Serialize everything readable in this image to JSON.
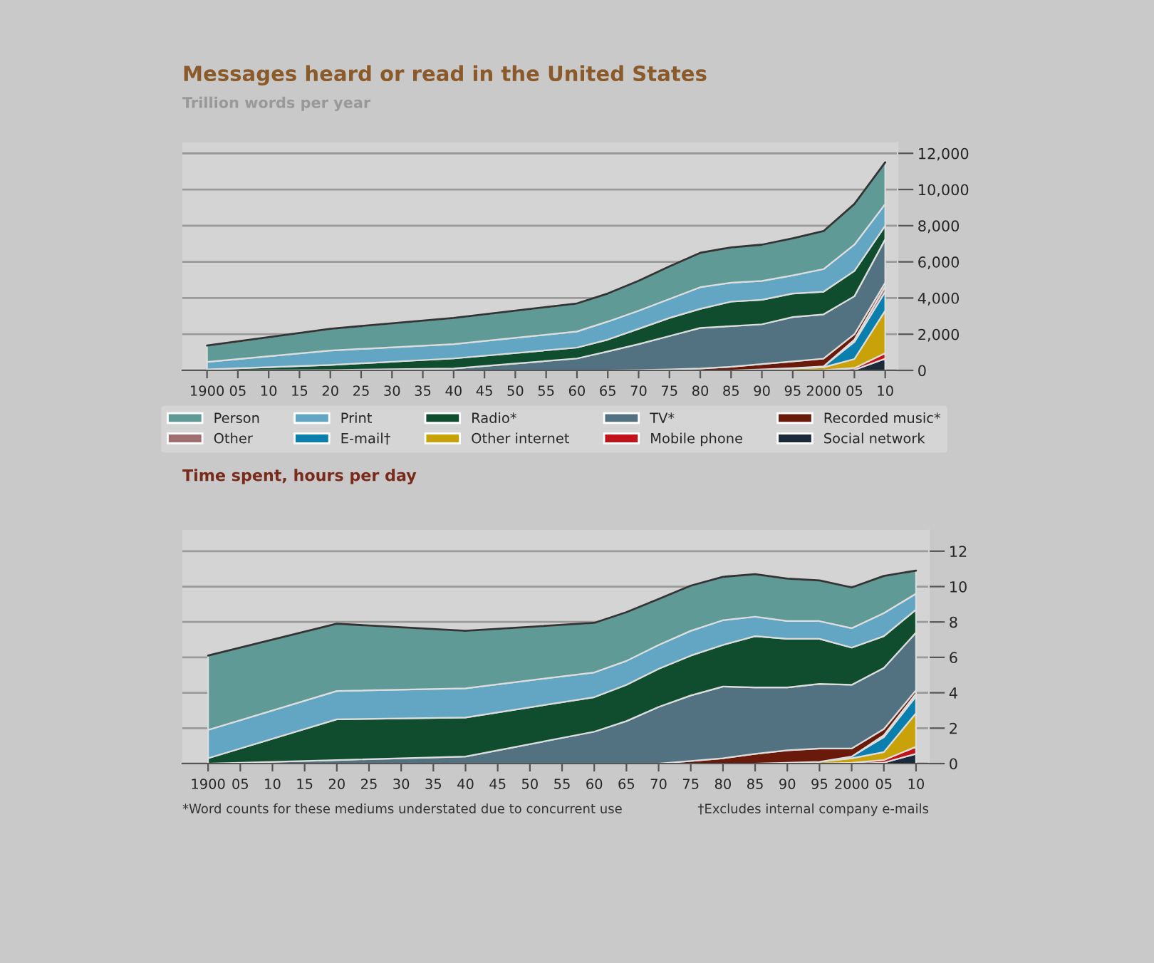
{
  "chart_data": [
    {
      "type": "area",
      "stacked": true,
      "title": "Messages heard or read in the United States",
      "subtitle": "Trillion words per year",
      "x": [
        1900,
        1920,
        1940,
        1960,
        1965,
        1970,
        1975,
        1980,
        1985,
        1990,
        1995,
        2000,
        2005,
        2010
      ],
      "xlim": [
        1896,
        2012
      ],
      "xticks": [
        1900,
        {
          "value": 1905,
          "label": "05"
        },
        {
          "value": 1910,
          "label": "10"
        },
        {
          "value": 1915,
          "label": "15"
        },
        {
          "value": 1920,
          "label": "20"
        },
        {
          "value": 1925,
          "label": "25"
        },
        {
          "value": 1930,
          "label": "30"
        },
        {
          "value": 1935,
          "label": "35"
        },
        {
          "value": 1940,
          "label": "40"
        },
        {
          "value": 1945,
          "label": "45"
        },
        {
          "value": 1950,
          "label": "50"
        },
        {
          "value": 1955,
          "label": "55"
        },
        {
          "value": 1960,
          "label": "60"
        },
        {
          "value": 1965,
          "label": "65"
        },
        {
          "value": 1970,
          "label": "70"
        },
        {
          "value": 1975,
          "label": "75"
        },
        {
          "value": 1980,
          "label": "80"
        },
        {
          "value": 1985,
          "label": "85"
        },
        {
          "value": 1990,
          "label": "90"
        },
        {
          "value": 1995,
          "label": "95"
        },
        2000,
        {
          "value": 2005,
          "label": "05"
        },
        {
          "value": 2010,
          "label": "10"
        }
      ],
      "ylim": [
        0,
        12600
      ],
      "yticks": [
        0,
        {
          "value": 2000,
          "label": "2,000"
        },
        {
          "value": 4000,
          "label": "4,000"
        },
        {
          "value": 6000,
          "label": "6,000"
        },
        {
          "value": 8000,
          "label": "8,000"
        },
        {
          "value": 10000,
          "label": "10,000"
        },
        {
          "value": 12000,
          "label": "12,000"
        }
      ],
      "grid": "y",
      "legend": "bottom",
      "series": [
        {
          "name": "Social network",
          "color": "#1b2a3a",
          "values": [
            0,
            0,
            0,
            0,
            0,
            0,
            0,
            0,
            0,
            0,
            0,
            0,
            30,
            650
          ]
        },
        {
          "name": "Mobile phone",
          "color": "#c0141a",
          "values": [
            0,
            0,
            0,
            0,
            0,
            0,
            0,
            0,
            0,
            0,
            0,
            20,
            100,
            300
          ]
        },
        {
          "name": "Other internet",
          "color": "#c9a20a",
          "values": [
            0,
            0,
            0,
            0,
            0,
            0,
            0,
            0,
            0,
            50,
            100,
            150,
            500,
            2350
          ]
        },
        {
          "name": "E-mail†",
          "color": "#0a7fae",
          "values": [
            0,
            0,
            0,
            0,
            0,
            0,
            0,
            0,
            0,
            0,
            20,
            50,
            950,
            1050
          ]
        },
        {
          "name": "Other",
          "color": "#a07070",
          "values": [
            0,
            0,
            0,
            0,
            0,
            0,
            0,
            0,
            0,
            0,
            0,
            0,
            120,
            300
          ]
        },
        {
          "name": "Recorded music*",
          "color": "#6a1a0a",
          "values": [
            0,
            0,
            0,
            0,
            0,
            20,
            50,
            100,
            200,
            300,
            380,
            430,
            300,
            200
          ]
        },
        {
          "name": "TV*",
          "color": "#527282",
          "values": [
            0,
            20,
            100,
            660,
            1050,
            1430,
            1850,
            2250,
            2250,
            2200,
            2450,
            2450,
            2100,
            2400
          ]
        },
        {
          "name": "Radio*",
          "color": "#0f4d2e",
          "values": [
            50,
            280,
            560,
            600,
            650,
            850,
            1000,
            1050,
            1350,
            1350,
            1300,
            1250,
            1400,
            750
          ]
        },
        {
          "name": "Print",
          "color": "#62a6c4",
          "values": [
            420,
            800,
            790,
            890,
            1000,
            1000,
            1050,
            1200,
            1050,
            1050,
            1000,
            1250,
            1450,
            1200
          ]
        },
        {
          "name": "Person",
          "color": "#5f9a97",
          "values": [
            900,
            1200,
            1450,
            1550,
            1550,
            1650,
            1800,
            1900,
            1950,
            2000,
            2050,
            2100,
            2250,
            2300
          ]
        }
      ]
    },
    {
      "type": "area",
      "stacked": true,
      "title": "Time spent, hours per day",
      "x": [
        1900,
        1920,
        1940,
        1960,
        1965,
        1970,
        1975,
        1980,
        1985,
        1990,
        1995,
        2000,
        2005,
        2010
      ],
      "xlim": [
        1896,
        2012
      ],
      "xticks": [
        1900,
        {
          "value": 1905,
          "label": "05"
        },
        {
          "value": 1910,
          "label": "10"
        },
        {
          "value": 1915,
          "label": "15"
        },
        {
          "value": 1920,
          "label": "20"
        },
        {
          "value": 1925,
          "label": "25"
        },
        {
          "value": 1930,
          "label": "30"
        },
        {
          "value": 1935,
          "label": "35"
        },
        {
          "value": 1940,
          "label": "40"
        },
        {
          "value": 1945,
          "label": "45"
        },
        {
          "value": 1950,
          "label": "50"
        },
        {
          "value": 1955,
          "label": "55"
        },
        {
          "value": 1960,
          "label": "60"
        },
        {
          "value": 1965,
          "label": "65"
        },
        {
          "value": 1970,
          "label": "70"
        },
        {
          "value": 1975,
          "label": "75"
        },
        {
          "value": 1980,
          "label": "80"
        },
        {
          "value": 1985,
          "label": "85"
        },
        {
          "value": 1990,
          "label": "90"
        },
        {
          "value": 1995,
          "label": "95"
        },
        2000,
        {
          "value": 2005,
          "label": "05"
        },
        {
          "value": 2010,
          "label": "10"
        }
      ],
      "ylim": [
        0,
        13.2
      ],
      "yticks": [
        0,
        2,
        4,
        6,
        8,
        10,
        12
      ],
      "grid": "y",
      "annotations": [
        "*Word counts for these mediums understated due to concurrent use",
        "†Excludes internal company e-mails"
      ],
      "series": [
        {
          "color": "#1b2a3a",
          "values": [
            0,
            0,
            0,
            0,
            0,
            0,
            0,
            0,
            0,
            0,
            0,
            0,
            0.05,
            0.55
          ]
        },
        {
          "color": "#c0141a",
          "values": [
            0,
            0,
            0,
            0,
            0,
            0,
            0,
            0,
            0,
            0,
            0,
            0.05,
            0.15,
            0.4
          ]
        },
        {
          "color": "#c9a20a",
          "values": [
            0,
            0,
            0,
            0,
            0,
            0,
            0,
            0,
            0,
            0,
            0.1,
            0.25,
            0.45,
            1.9
          ]
        },
        {
          "color": "#0a7fae",
          "values": [
            0,
            0,
            0,
            0,
            0,
            0,
            0,
            0,
            0,
            0,
            0,
            0.1,
            0.85,
            0.95
          ]
        },
        {
          "color": "#a07070",
          "values": [
            0,
            0,
            0,
            0,
            0,
            0,
            0,
            0,
            0,
            0.05,
            0,
            0,
            0.1,
            0.15
          ]
        },
        {
          "color": "#6a1a0a",
          "values": [
            0,
            0,
            0,
            0,
            0,
            0,
            0.15,
            0.3,
            0.55,
            0.7,
            0.75,
            0.45,
            0.35,
            0.2
          ]
        },
        {
          "color": "#527282",
          "values": [
            0,
            0.2,
            0.4,
            1.8,
            2.4,
            3.2,
            3.7,
            4.05,
            3.75,
            3.55,
            3.65,
            3.6,
            3.45,
            3.25
          ]
        },
        {
          "color": "#0f4d2e",
          "values": [
            0.3,
            2.3,
            2.2,
            1.95,
            2.05,
            2.15,
            2.25,
            2.35,
            2.9,
            2.75,
            2.55,
            2.1,
            1.8,
            1.3
          ]
        },
        {
          "color": "#62a6c4",
          "values": [
            1.6,
            1.6,
            1.65,
            1.4,
            1.35,
            1.35,
            1.4,
            1.4,
            1.1,
            1.0,
            1.0,
            1.1,
            1.3,
            0.9
          ]
        },
        {
          "color": "#5f9a97",
          "values": [
            4.2,
            3.8,
            3.25,
            2.8,
            2.75,
            2.6,
            2.55,
            2.45,
            2.4,
            2.4,
            2.3,
            2.3,
            2.1,
            1.3
          ]
        }
      ]
    }
  ]
}
